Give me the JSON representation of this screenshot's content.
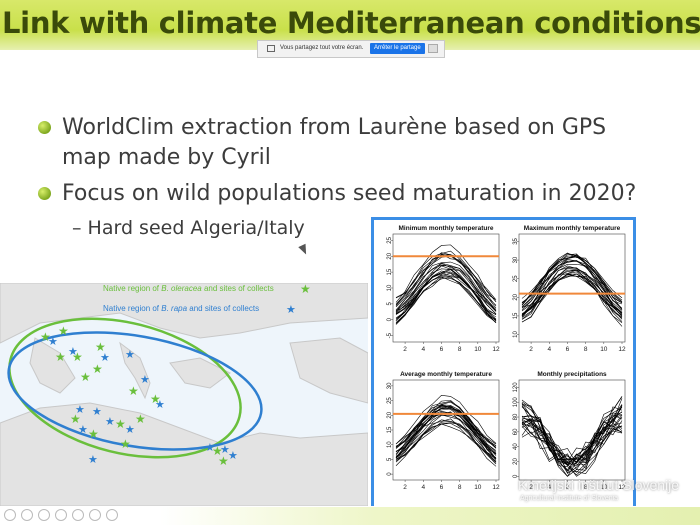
{
  "slide": {
    "title": "Link with climate Mediterranean conditions",
    "bullets": [
      "WorldClim extraction from Laurène based on GPS",
      "map made by Cyril",
      "Focus on wild populations seed maturation in 2020?"
    ],
    "sub_bullet": "– Hard seed Algeria/Italy"
  },
  "share_bar": {
    "text": "Vous partagez tout votre écran.",
    "stop_label": "Arrêter le partage"
  },
  "map": {
    "legend_oleracea_prefix": "Native region of ",
    "legend_oleracea_species": "B. oleracea",
    "legend_oleracea_suffix": " and sites of collects",
    "legend_rapa_prefix": "Native region of ",
    "legend_rapa_species": "B. rapa",
    "legend_rapa_suffix": " and sites of collects",
    "oleracea_color": "#6abf3c",
    "rapa_color": "#2f7fd0"
  },
  "watermark": {
    "org": "Kmetijski inštitut Slovenije",
    "sub": "Agricultural Institute of Slovenia"
  },
  "chart_data": [
    {
      "type": "line",
      "title": "Minimum monthly temperature",
      "x_ticks": [
        "2",
        "4",
        "6",
        "8",
        "10",
        "12"
      ],
      "y_ticks": [
        "-5",
        "0",
        "5",
        "10",
        "15",
        "20",
        "25"
      ],
      "ylim": [
        -7,
        27
      ],
      "reference_line": 20
    },
    {
      "type": "line",
      "title": "Maximum monthly temperature",
      "x_ticks": [
        "2",
        "4",
        "6",
        "8",
        "10",
        "12"
      ],
      "y_ticks": [
        "10",
        "15",
        "20",
        "25",
        "30",
        "35"
      ],
      "ylim": [
        8,
        37
      ],
      "reference_line": 21
    },
    {
      "type": "line",
      "title": "Average monthly temperature",
      "x_ticks": [
        "2",
        "4",
        "6",
        "8",
        "10",
        "12"
      ],
      "y_ticks": [
        "0",
        "5",
        "10",
        "15",
        "20",
        "25",
        "30"
      ],
      "ylim": [
        -2,
        32
      ],
      "reference_line": 20.5
    },
    {
      "type": "line",
      "title": "Monthly precipitations",
      "x_ticks": [
        "2",
        "4",
        "6",
        "8",
        "10",
        "12"
      ],
      "y_ticks": [
        "0",
        "20",
        "40",
        "60",
        "80",
        "100",
        "120"
      ],
      "ylim": [
        -5,
        130
      ]
    }
  ],
  "colors": {
    "accent_green": "#c9e04a",
    "title_text": "#3a4a0a",
    "frame_blue": "#3b8ee6",
    "reference": "#f0883a"
  }
}
